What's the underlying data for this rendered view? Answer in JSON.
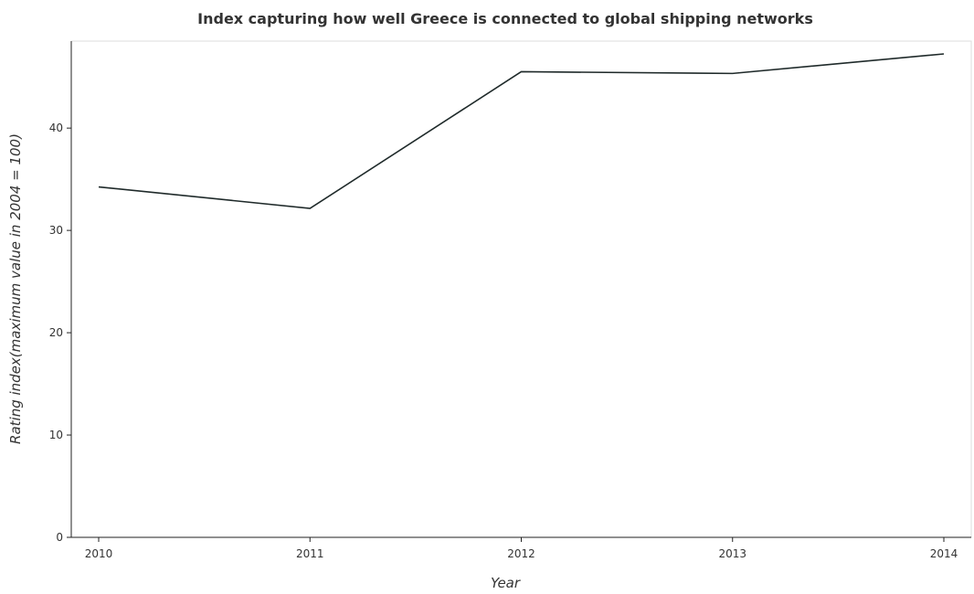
{
  "chart_data": {
    "type": "line",
    "title": "Index capturing how well Greece is connected to global shipping networks",
    "xlabel": "Year",
    "ylabel": "Rating index(maximum value in 2004 = 100)",
    "categories": [
      "2010",
      "2011",
      "2012",
      "2013",
      "2014"
    ],
    "series": [
      {
        "values": [
          34.25,
          32.15,
          45.51,
          45.34,
          47.25
        ]
      }
    ],
    "ylim": [
      0,
      48.5
    ],
    "yticks": [
      0,
      10,
      20,
      30,
      40
    ],
    "ytick_labels": [
      "0",
      "10",
      "20",
      "30",
      "40"
    ],
    "grid": false,
    "legend": "none",
    "colors": {
      "line": "#1f2a2a",
      "axis": "#222222"
    }
  }
}
